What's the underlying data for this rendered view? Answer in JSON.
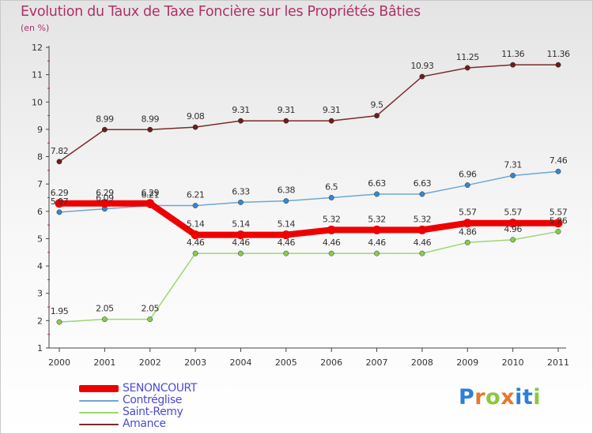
{
  "title": "Evolution du Taux de Taxe Foncière sur les Propriétés Bâties",
  "unit_label": "(en %)",
  "brand": {
    "letters": [
      "P",
      "r",
      "o",
      "x",
      "i",
      "t",
      "i"
    ],
    "colors": [
      "#2e7fd6",
      "#e8762d",
      "#8cc63f",
      "#e8762d",
      "#2e7fd6",
      "#2e7fd6",
      "#8cc63f"
    ]
  },
  "chart_data": {
    "type": "line",
    "title": "Evolution du Taux de Taxe Foncière sur les Propriétés Bâties",
    "ylabel": "(en %)",
    "xlabel": "",
    "ylim": [
      1,
      12
    ],
    "yticks": [
      "1",
      "2",
      "3",
      "4",
      "5",
      "6",
      "7",
      "8",
      "9",
      "10",
      "11",
      "12"
    ],
    "x": [
      "2000",
      "2001",
      "2002",
      "2003",
      "2004",
      "2005",
      "2006",
      "2007",
      "2008",
      "2009",
      "2010",
      "2011"
    ],
    "series": [
      {
        "name": "Amance",
        "color": "#7a2a2a",
        "marker": "#6a1e1e",
        "thick": false,
        "values": [
          7.82,
          8.99,
          8.99,
          9.08,
          9.31,
          9.31,
          9.31,
          9.5,
          10.93,
          11.25,
          11.36,
          11.36
        ],
        "labels": [
          "7.82",
          "8.99",
          "8.99",
          "9.08",
          "9.31",
          "9.31",
          "9.31",
          "9.5",
          "10.93",
          "11.25",
          "11.36",
          "11.36"
        ]
      },
      {
        "name": "Contréglise",
        "color": "#6ea6d6",
        "marker": "#3a86cc",
        "thick": false,
        "values": [
          5.97,
          6.09,
          6.21,
          6.21,
          6.33,
          6.38,
          6.5,
          6.63,
          6.63,
          6.96,
          7.31,
          7.46
        ],
        "labels": [
          "5.97",
          "6.09",
          "6.21",
          "6.21",
          "6.33",
          "6.38",
          "6.5",
          "6.63",
          "6.63",
          "6.96",
          "7.31",
          "7.46"
        ]
      },
      {
        "name": "Saint-Remy",
        "color": "#9ad870",
        "marker": "#86cc50",
        "thick": false,
        "values": [
          1.95,
          2.05,
          2.05,
          4.46,
          4.46,
          4.46,
          4.46,
          4.46,
          4.46,
          4.86,
          4.96,
          5.26
        ],
        "labels": [
          "1.95",
          "2.05",
          "2.05",
          "4.46",
          "4.46",
          "4.46",
          "4.46",
          "4.46",
          "4.46",
          "4.86",
          "4.96",
          "5.26"
        ]
      },
      {
        "name": "SENONCOURT",
        "color": "#ee0000",
        "marker": "#ee0000",
        "thick": true,
        "values": [
          6.29,
          6.29,
          6.29,
          5.14,
          5.14,
          5.14,
          5.32,
          5.32,
          5.32,
          5.57,
          5.57,
          5.57
        ],
        "labels": [
          "6.29",
          "6.29",
          "6.29",
          "5.14",
          "5.14",
          "5.14",
          "5.32",
          "5.32",
          "5.32",
          "5.57",
          "5.57",
          "5.57"
        ]
      }
    ],
    "legend": [
      "SENONCOURT",
      "Contréglise",
      "Saint-Remy",
      "Amance"
    ],
    "legend_colors": [
      "#ee0000",
      "#6ea6d6",
      "#9ad870",
      "#7a2a2a"
    ],
    "grid": false,
    "legend_position": "bottom-left"
  }
}
